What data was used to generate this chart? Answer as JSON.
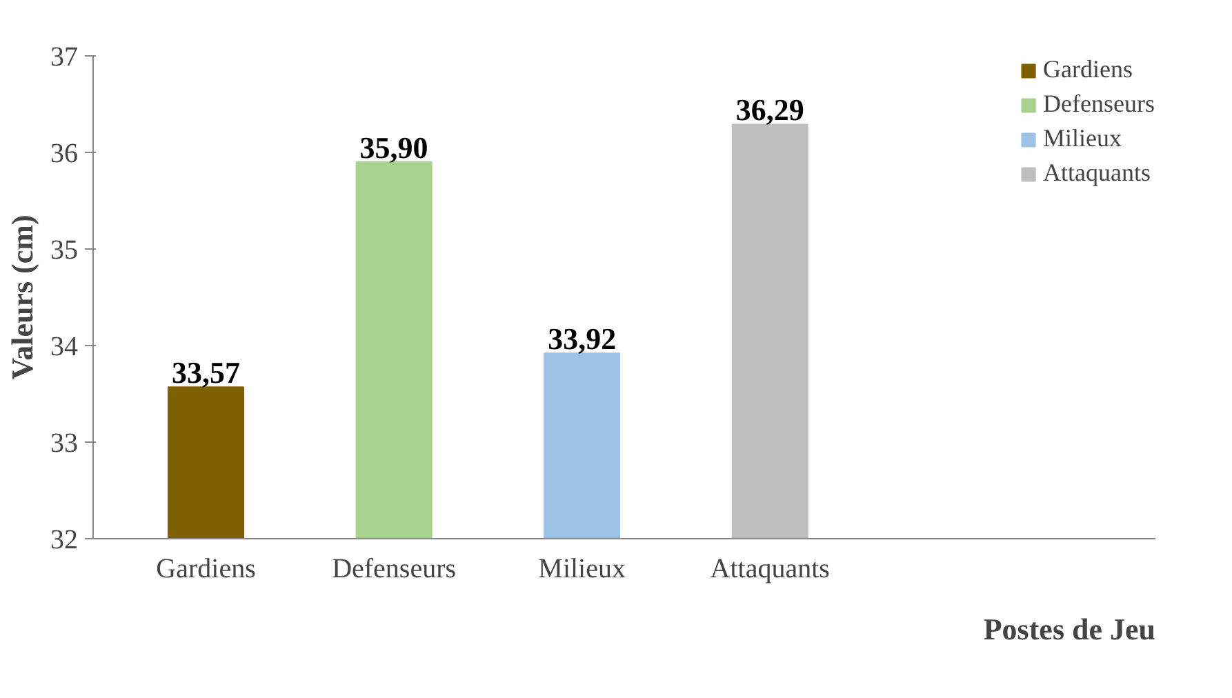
{
  "chart_data": {
    "type": "bar",
    "xlabel": "Postes de Jeu",
    "ylabel": "Valeurs (cm)",
    "categories": [
      "Gardiens",
      "Defenseurs",
      "Milieux",
      "Attaquants"
    ],
    "series": [
      {
        "name": "Gardiens",
        "color": "#7f6000",
        "values": [
          33.57,
          null,
          null,
          null
        ],
        "value_labels": [
          "33,57",
          null,
          null,
          null
        ]
      },
      {
        "name": "Defenseurs",
        "color": "#a9d18e",
        "values": [
          null,
          35.9,
          null,
          null
        ],
        "value_labels": [
          null,
          "35,90",
          null,
          null
        ]
      },
      {
        "name": "Milieux",
        "color": "#9dc3e6",
        "values": [
          null,
          null,
          33.92,
          null
        ],
        "value_labels": [
          null,
          null,
          "33,92",
          null
        ]
      },
      {
        "name": "Attaquants",
        "color": "#bfbfbf",
        "values": [
          null,
          null,
          null,
          36.29
        ],
        "value_labels": [
          null,
          null,
          null,
          "36,29"
        ]
      }
    ],
    "ylim": [
      32,
      37
    ],
    "yticks": [
      32,
      33,
      34,
      35,
      36,
      37
    ],
    "grid": false,
    "legend": "top right"
  }
}
